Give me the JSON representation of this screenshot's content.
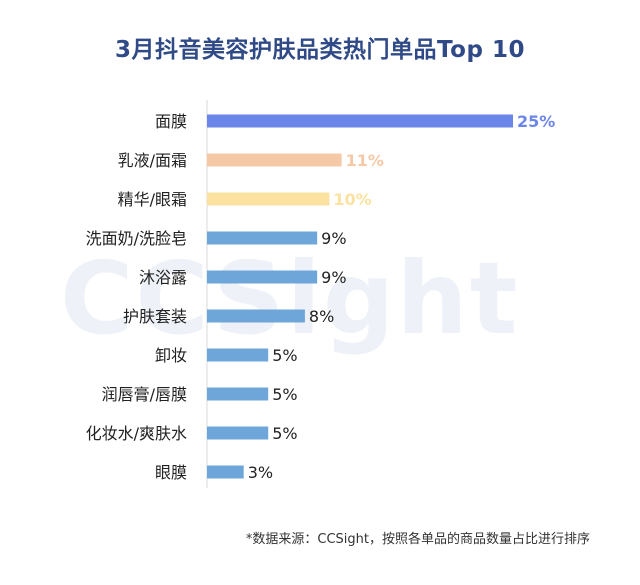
{
  "chart_data": {
    "type": "bar",
    "orientation": "horizontal",
    "title": "3月抖音美容护肤品类热门单品Top 10",
    "categories": [
      "面膜",
      "乳液/面霜",
      "精华/眼霜",
      "洗面奶/洗脸皂",
      "沐浴露",
      "护肤套装",
      "卸妆",
      "润唇膏/唇膜",
      "化妆水/爽肤水",
      "眼膜"
    ],
    "values": [
      25,
      11,
      10,
      9,
      9,
      8,
      5,
      5,
      5,
      3
    ],
    "data_labels": [
      "25%",
      "11%",
      "10%",
      "9%",
      "9%",
      "8%",
      "5%",
      "5%",
      "5%",
      "3%"
    ],
    "bar_colors": [
      "#6b86e8",
      "#f6c9a6",
      "#fbe2a0",
      "#6fa6d9",
      "#6fa6d9",
      "#6fa6d9",
      "#6fa6d9",
      "#6fa6d9",
      "#6fa6d9",
      "#6fa6d9"
    ],
    "label_colors": [
      "#6b86e8",
      "#f6c9a6",
      "#fbe2a0",
      "#222222",
      "#222222",
      "#222222",
      "#222222",
      "#222222",
      "#222222",
      "#222222"
    ],
    "xlim": [
      0,
      25
    ],
    "grid": false,
    "legend": "none"
  },
  "watermark": "CCSight",
  "footnote": "*数据来源：CCSight，按照各单品的商品数量占比进行排序"
}
